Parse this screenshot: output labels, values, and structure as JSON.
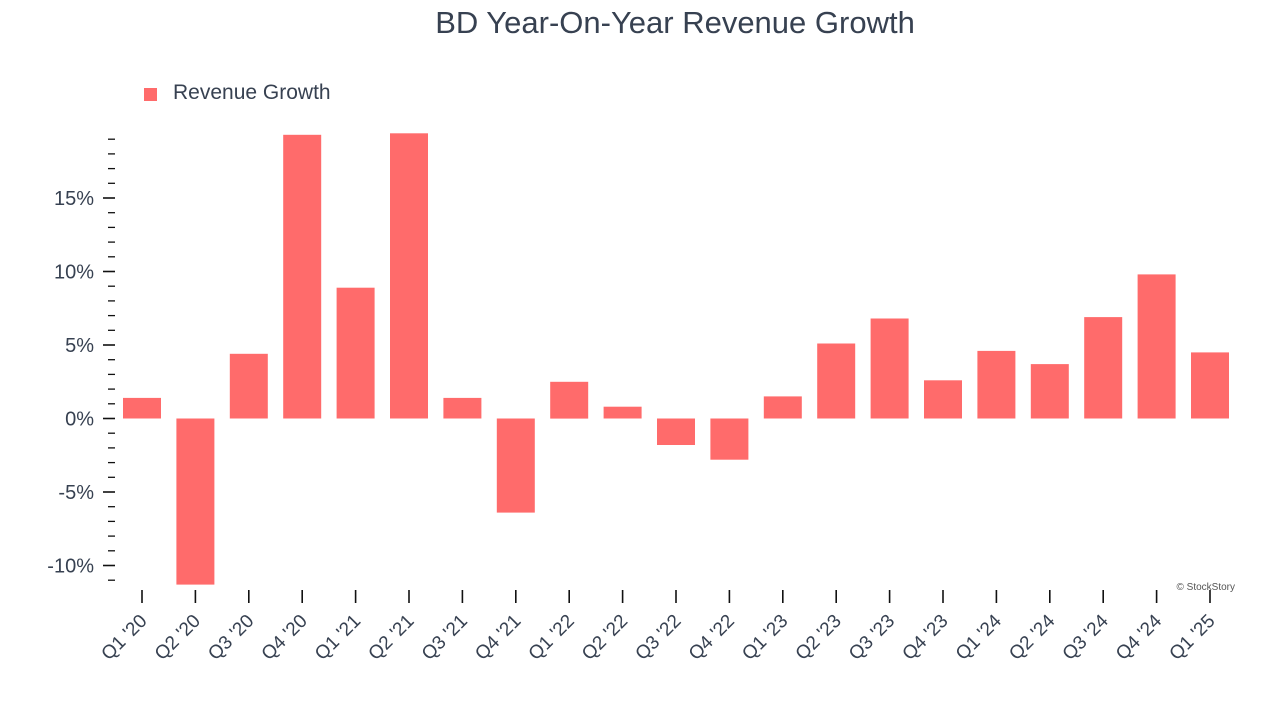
{
  "chart_data": {
    "type": "bar",
    "title": "BD Year-On-Year Revenue Growth",
    "xlabel": "",
    "ylabel": "",
    "legend": {
      "entries": [
        "Revenue Growth"
      ],
      "placement": "top-left"
    },
    "series": [
      {
        "name": "Revenue Growth",
        "values": [
          1.4,
          -11.3,
          4.4,
          19.3,
          8.9,
          19.4,
          1.4,
          -6.4,
          2.5,
          0.8,
          -1.8,
          -2.8,
          1.5,
          5.1,
          6.8,
          2.6,
          4.6,
          3.7,
          6.9,
          9.8,
          4.5
        ]
      }
    ],
    "categories": [
      "Q1 '20",
      "Q2 '20",
      "Q3 '20",
      "Q4 '20",
      "Q1 '21",
      "Q2 '21",
      "Q3 '21",
      "Q4 '21",
      "Q1 '22",
      "Q2 '22",
      "Q3 '22",
      "Q4 '22",
      "Q1 '23",
      "Q2 '23",
      "Q3 '23",
      "Q4 '23",
      "Q1 '24",
      "Q2 '24",
      "Q3 '24",
      "Q4 '24",
      "Q1 '25"
    ],
    "ylim": [
      -11.3,
      19.5
    ],
    "yticks": [
      -10,
      -5,
      0,
      5,
      10,
      15
    ],
    "ytick_labels": [
      "-10%",
      "-5%",
      "0%",
      "5%",
      "10%",
      "15%"
    ],
    "grid": false,
    "bar_color": "#ff6b6b",
    "text_color": "#374151",
    "watermark": "© StockStory"
  }
}
